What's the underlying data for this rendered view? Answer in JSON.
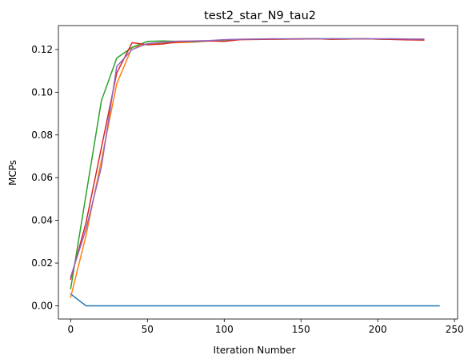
{
  "chart_data": {
    "type": "line",
    "title": "test2_star_N9_tau2",
    "xlabel": "Iteration Number",
    "ylabel": "MCPs",
    "xlim": [
      -8,
      252
    ],
    "ylim": [
      -0.0062,
      0.1312
    ],
    "x_ticks": [
      0,
      50,
      100,
      150,
      200,
      250
    ],
    "y_ticks": [
      0.0,
      0.02,
      0.04,
      0.06,
      0.08,
      0.1,
      0.12
    ],
    "x_tick_labels": [
      "0",
      "50",
      "100",
      "150",
      "200",
      "250"
    ],
    "y_tick_labels": [
      "0.00",
      "0.02",
      "0.04",
      "0.06",
      "0.08",
      "0.10",
      "0.12"
    ],
    "grid": false,
    "legend": "none",
    "series": [
      {
        "color": "#1f77b4",
        "x": [
          0,
          10,
          20,
          30,
          40,
          50,
          60,
          70,
          80,
          90,
          100,
          110,
          120,
          130,
          140,
          150,
          160,
          170,
          180,
          190,
          200,
          210,
          220,
          230,
          240
        ],
        "y": [
          0.0055,
          0.0,
          0.0,
          0.0,
          0.0,
          0.0,
          0.0,
          0.0,
          0.0,
          0.0,
          0.0,
          0.0,
          0.0,
          0.0,
          0.0,
          0.0,
          0.0,
          0.0,
          0.0,
          0.0,
          0.0,
          0.0,
          0.0,
          0.0,
          0.0
        ]
      },
      {
        "color": "#ff7f0e",
        "x": [
          0,
          10,
          20,
          30,
          40,
          50,
          60,
          70,
          80,
          90,
          100,
          110,
          120,
          130,
          140,
          150,
          160,
          170,
          180,
          190,
          200,
          210,
          220,
          230
        ],
        "y": [
          0.004,
          0.033,
          0.068,
          0.104,
          0.121,
          0.1225,
          0.123,
          0.1232,
          0.1235,
          0.124,
          0.1245,
          0.1248,
          0.1248,
          0.1249,
          0.1249,
          0.125,
          0.125,
          0.1248,
          0.1249,
          0.125,
          0.1249,
          0.1248,
          0.1246,
          0.1245
        ]
      },
      {
        "color": "#2ca02c",
        "x": [
          0,
          10,
          20,
          30,
          40,
          50,
          60,
          70,
          80,
          90,
          100,
          110,
          120,
          130,
          140,
          150,
          160,
          170,
          180,
          190,
          200,
          210,
          220,
          230
        ],
        "y": [
          0.008,
          0.052,
          0.096,
          0.116,
          0.121,
          0.1238,
          0.124,
          0.1238,
          0.1236,
          0.124,
          0.1244,
          0.1247,
          0.1248,
          0.1249,
          0.1249,
          0.125,
          0.125,
          0.125,
          0.125,
          0.125,
          0.1249,
          0.1248,
          0.1248,
          0.1247
        ]
      },
      {
        "color": "#d62728",
        "x": [
          0,
          10,
          20,
          30,
          40,
          50,
          60,
          70,
          80,
          90,
          100,
          110,
          120,
          130,
          140,
          150,
          160,
          170,
          180,
          190,
          200,
          210,
          220,
          230
        ],
        "y": [
          0.0125,
          0.039,
          0.074,
          0.109,
          0.1232,
          0.1222,
          0.1226,
          0.1236,
          0.1238,
          0.124,
          0.1238,
          0.1246,
          0.1247,
          0.1248,
          0.1249,
          0.1249,
          0.125,
          0.1248,
          0.1249,
          0.125,
          0.1249,
          0.1247,
          0.1245,
          0.1244
        ]
      },
      {
        "color": "#9467bd",
        "x": [
          0,
          10,
          20,
          30,
          40,
          50,
          60,
          70,
          80,
          90,
          100,
          110,
          120,
          130,
          140,
          150,
          160,
          170,
          180,
          190,
          200,
          210,
          220,
          230
        ],
        "y": [
          0.0135,
          0.036,
          0.065,
          0.112,
          0.12,
          0.1228,
          0.1234,
          0.1239,
          0.124,
          0.1242,
          0.1246,
          0.1248,
          0.1249,
          0.125,
          0.125,
          0.125,
          0.125,
          0.125,
          0.125,
          0.125,
          0.125,
          0.125,
          0.1249,
          0.1249
        ]
      }
    ]
  }
}
